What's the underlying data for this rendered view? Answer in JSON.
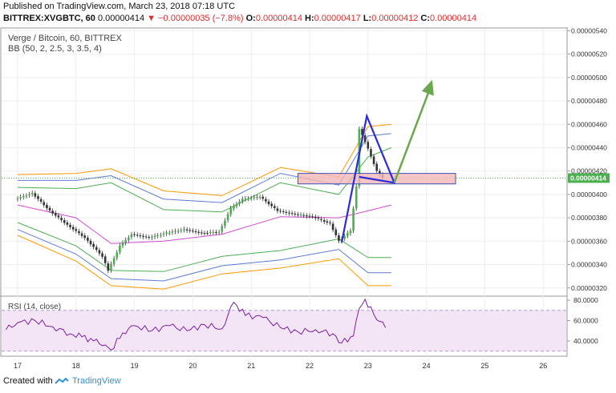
{
  "header": {
    "published": "Published on TradingView.com, March 23, 2018 07:18 UTC",
    "symbol": "BITTREX:XVGBTC, 60",
    "last": "0.00000414",
    "change_arrow": "▼",
    "change": "−0.00000035 (−7.8%)",
    "o_label": "O:",
    "o_value": "0.00000414",
    "h_label": "H:",
    "h_value": "0.00000417",
    "l_label": "L:",
    "l_value": "0.00000412",
    "c_label": "C:",
    "c_value": "0.00000414"
  },
  "legend": {
    "line1": "Verge / Bitcoin, 60, BITTREX",
    "line2": "BB (50, 2, 2.5, 3, 3.5, 4)",
    "rsi": "RSI (14, close)"
  },
  "footer": {
    "created": "Created with",
    "brand": "TradingView",
    "logo_icon": "tradingview-logo-icon"
  },
  "colors": {
    "up": "#4caf50",
    "down": "#333333",
    "bb_inner": "#4caf50",
    "bb_mid": "#5c7bd9",
    "bb_outer": "#ff9800",
    "bb_basis": "#d24ad6",
    "rsi_line": "#7b1fa2",
    "rsi_fill": "#f3e5f5",
    "box_fill": "#f4b6b6",
    "box_stroke": "#3d4fb5",
    "triangle": "#2b2bd8",
    "arrow": "#6aa84f",
    "price_tag": "#4caf50"
  },
  "chart_data": {
    "type": "candlestick",
    "title": "Verge / Bitcoin, 60, BITTREX",
    "x_tick_labels": [
      "17",
      "18",
      "19",
      "20",
      "21",
      "22",
      "23",
      "24",
      "25",
      "26"
    ],
    "y_tick_labels": [
      "0.00000540",
      "0.00000520",
      "0.00000500",
      "0.00000480",
      "0.00000460",
      "0.00000440",
      "0.00000420",
      "0.00000400",
      "0.00000380",
      "0.00000360",
      "0.00000340",
      "0.00000320"
    ],
    "ylim": [
      3.13e-06,
      5.43e-06
    ],
    "last_price_label": "0.00000414",
    "last_price": 4.14e-06,
    "close": [
      {
        "day": 17.0,
        "v": 3.96e-06
      },
      {
        "day": 17.3,
        "v": 4.01e-06
      },
      {
        "day": 17.6,
        "v": 3.86e-06
      },
      {
        "day": 17.9,
        "v": 3.74e-06
      },
      {
        "day": 18.2,
        "v": 3.63e-06
      },
      {
        "day": 18.5,
        "v": 3.47e-06
      },
      {
        "day": 18.6,
        "v": 3.35e-06
      },
      {
        "day": 18.8,
        "v": 3.56e-06
      },
      {
        "day": 19.0,
        "v": 3.66e-06
      },
      {
        "day": 19.3,
        "v": 3.63e-06
      },
      {
        "day": 19.6,
        "v": 3.67e-06
      },
      {
        "day": 19.9,
        "v": 3.7e-06
      },
      {
        "day": 20.2,
        "v": 3.67e-06
      },
      {
        "day": 20.5,
        "v": 3.68e-06
      },
      {
        "day": 20.7,
        "v": 3.88e-06
      },
      {
        "day": 20.9,
        "v": 3.96e-06
      },
      {
        "day": 21.2,
        "v": 3.98e-06
      },
      {
        "day": 21.5,
        "v": 3.86e-06
      },
      {
        "day": 21.8,
        "v": 3.83e-06
      },
      {
        "day": 22.1,
        "v": 3.81e-06
      },
      {
        "day": 22.4,
        "v": 3.75e-06
      },
      {
        "day": 22.55,
        "v": 3.6e-06
      },
      {
        "day": 22.75,
        "v": 3.69e-06
      },
      {
        "day": 22.85,
        "v": 4.07e-06
      },
      {
        "day": 22.9,
        "v": 4.56e-06
      },
      {
        "day": 23.0,
        "v": 4.45e-06
      },
      {
        "day": 23.2,
        "v": 4.2e-06
      },
      {
        "day": 23.3,
        "v": 4.14e-06
      }
    ],
    "bollinger": {
      "basis": [
        {
          "day": 17.0,
          "v": 3.91e-06
        },
        {
          "day": 18.0,
          "v": 3.8e-06
        },
        {
          "day": 18.6,
          "v": 3.58e-06
        },
        {
          "day": 19.5,
          "v": 3.6e-06
        },
        {
          "day": 20.5,
          "v": 3.66e-06
        },
        {
          "day": 21.5,
          "v": 3.81e-06
        },
        {
          "day": 22.5,
          "v": 3.8e-06
        },
        {
          "day": 23.0,
          "v": 3.86e-06
        },
        {
          "day": 23.4,
          "v": 3.91e-06
        }
      ],
      "upper_2": [
        {
          "day": 17.0,
          "v": 4.06e-06
        },
        {
          "day": 18.0,
          "v": 4.05e-06
        },
        {
          "day": 18.6,
          "v": 4.1e-06
        },
        {
          "day": 19.5,
          "v": 3.87e-06
        },
        {
          "day": 20.5,
          "v": 3.85e-06
        },
        {
          "day": 21.5,
          "v": 4.1e-06
        },
        {
          "day": 22.5,
          "v": 4e-06
        },
        {
          "day": 23.0,
          "v": 4.32e-06
        },
        {
          "day": 23.4,
          "v": 4.4e-06
        }
      ],
      "lower_2": [
        {
          "day": 17.0,
          "v": 3.76e-06
        },
        {
          "day": 18.0,
          "v": 3.56e-06
        },
        {
          "day": 18.6,
          "v": 3.35e-06
        },
        {
          "day": 19.5,
          "v": 3.34e-06
        },
        {
          "day": 20.5,
          "v": 3.47e-06
        },
        {
          "day": 21.5,
          "v": 3.52e-06
        },
        {
          "day": 22.5,
          "v": 3.62e-06
        },
        {
          "day": 23.0,
          "v": 3.46e-06
        },
        {
          "day": 23.4,
          "v": 3.46e-06
        }
      ],
      "upper_3": [
        {
          "day": 17.0,
          "v": 4.12e-06
        },
        {
          "day": 18.0,
          "v": 4.12e-06
        },
        {
          "day": 18.6,
          "v": 4.16e-06
        },
        {
          "day": 19.5,
          "v": 3.96e-06
        },
        {
          "day": 20.5,
          "v": 3.93e-06
        },
        {
          "day": 21.5,
          "v": 4.18e-06
        },
        {
          "day": 22.5,
          "v": 4.08e-06
        },
        {
          "day": 23.0,
          "v": 4.5e-06
        },
        {
          "day": 23.4,
          "v": 4.52e-06
        }
      ],
      "lower_3": [
        {
          "day": 17.0,
          "v": 3.7e-06
        },
        {
          "day": 18.0,
          "v": 3.49e-06
        },
        {
          "day": 18.6,
          "v": 3.28e-06
        },
        {
          "day": 19.5,
          "v": 3.26e-06
        },
        {
          "day": 20.5,
          "v": 3.39e-06
        },
        {
          "day": 21.5,
          "v": 3.44e-06
        },
        {
          "day": 22.5,
          "v": 3.53e-06
        },
        {
          "day": 23.0,
          "v": 3.33e-06
        },
        {
          "day": 23.4,
          "v": 3.33e-06
        }
      ],
      "upper_4": [
        {
          "day": 17.0,
          "v": 4.17e-06
        },
        {
          "day": 18.0,
          "v": 4.18e-06
        },
        {
          "day": 18.6,
          "v": 4.22e-06
        },
        {
          "day": 19.5,
          "v": 4.03e-06
        },
        {
          "day": 20.5,
          "v": 3.99e-06
        },
        {
          "day": 21.5,
          "v": 4.23e-06
        },
        {
          "day": 22.5,
          "v": 4.15e-06
        },
        {
          "day": 23.0,
          "v": 4.58e-06
        },
        {
          "day": 23.4,
          "v": 4.6e-06
        }
      ],
      "lower_4": [
        {
          "day": 17.0,
          "v": 3.65e-06
        },
        {
          "day": 18.0,
          "v": 3.43e-06
        },
        {
          "day": 18.6,
          "v": 3.22e-06
        },
        {
          "day": 19.5,
          "v": 3.19e-06
        },
        {
          "day": 20.5,
          "v": 3.32e-06
        },
        {
          "day": 21.5,
          "v": 3.37e-06
        },
        {
          "day": 22.5,
          "v": 3.45e-06
        },
        {
          "day": 23.0,
          "v": 3.22e-06
        },
        {
          "day": 23.4,
          "v": 3.22e-06
        }
      ]
    },
    "annotations": {
      "box": {
        "day_start": 21.8,
        "day_end": 24.5,
        "v_low": 4.09e-06,
        "v_high": 4.18e-06
      },
      "triangle": [
        {
          "day": 22.55,
          "v": 3.59e-06
        },
        {
          "day": 22.98,
          "v": 4.67e-06
        },
        {
          "day": 23.45,
          "v": 4.1e-06
        },
        {
          "day": 22.85,
          "v": 4.15e-06
        }
      ],
      "arrow": {
        "from": {
          "day": 23.45,
          "v": 4.1e-06
        },
        "to": {
          "day": 24.1,
          "v": 4.98e-06
        }
      }
    },
    "rsi": {
      "title": "RSI (14, close)",
      "y_tick_labels": [
        "80.0000",
        "60.0000",
        "40.0000"
      ],
      "ylim": [
        25,
        84
      ],
      "band": [
        30,
        70
      ],
      "values": [
        {
          "day": 16.8,
          "v": 51
        },
        {
          "day": 17.0,
          "v": 58
        },
        {
          "day": 17.3,
          "v": 60
        },
        {
          "day": 17.6,
          "v": 54
        },
        {
          "day": 17.9,
          "v": 47
        },
        {
          "day": 18.1,
          "v": 44
        },
        {
          "day": 18.3,
          "v": 40
        },
        {
          "day": 18.5,
          "v": 36
        },
        {
          "day": 18.6,
          "v": 31
        },
        {
          "day": 18.8,
          "v": 48
        },
        {
          "day": 19.0,
          "v": 55
        },
        {
          "day": 19.3,
          "v": 50
        },
        {
          "day": 19.6,
          "v": 55
        },
        {
          "day": 19.9,
          "v": 50
        },
        {
          "day": 20.2,
          "v": 56
        },
        {
          "day": 20.5,
          "v": 52
        },
        {
          "day": 20.7,
          "v": 78
        },
        {
          "day": 20.9,
          "v": 65
        },
        {
          "day": 21.2,
          "v": 63
        },
        {
          "day": 21.5,
          "v": 53
        },
        {
          "day": 21.8,
          "v": 49
        },
        {
          "day": 22.1,
          "v": 51
        },
        {
          "day": 22.4,
          "v": 47
        },
        {
          "day": 22.55,
          "v": 38
        },
        {
          "day": 22.75,
          "v": 45
        },
        {
          "day": 22.85,
          "v": 72
        },
        {
          "day": 22.95,
          "v": 81
        },
        {
          "day": 23.1,
          "v": 66
        },
        {
          "day": 23.3,
          "v": 53
        }
      ]
    }
  }
}
